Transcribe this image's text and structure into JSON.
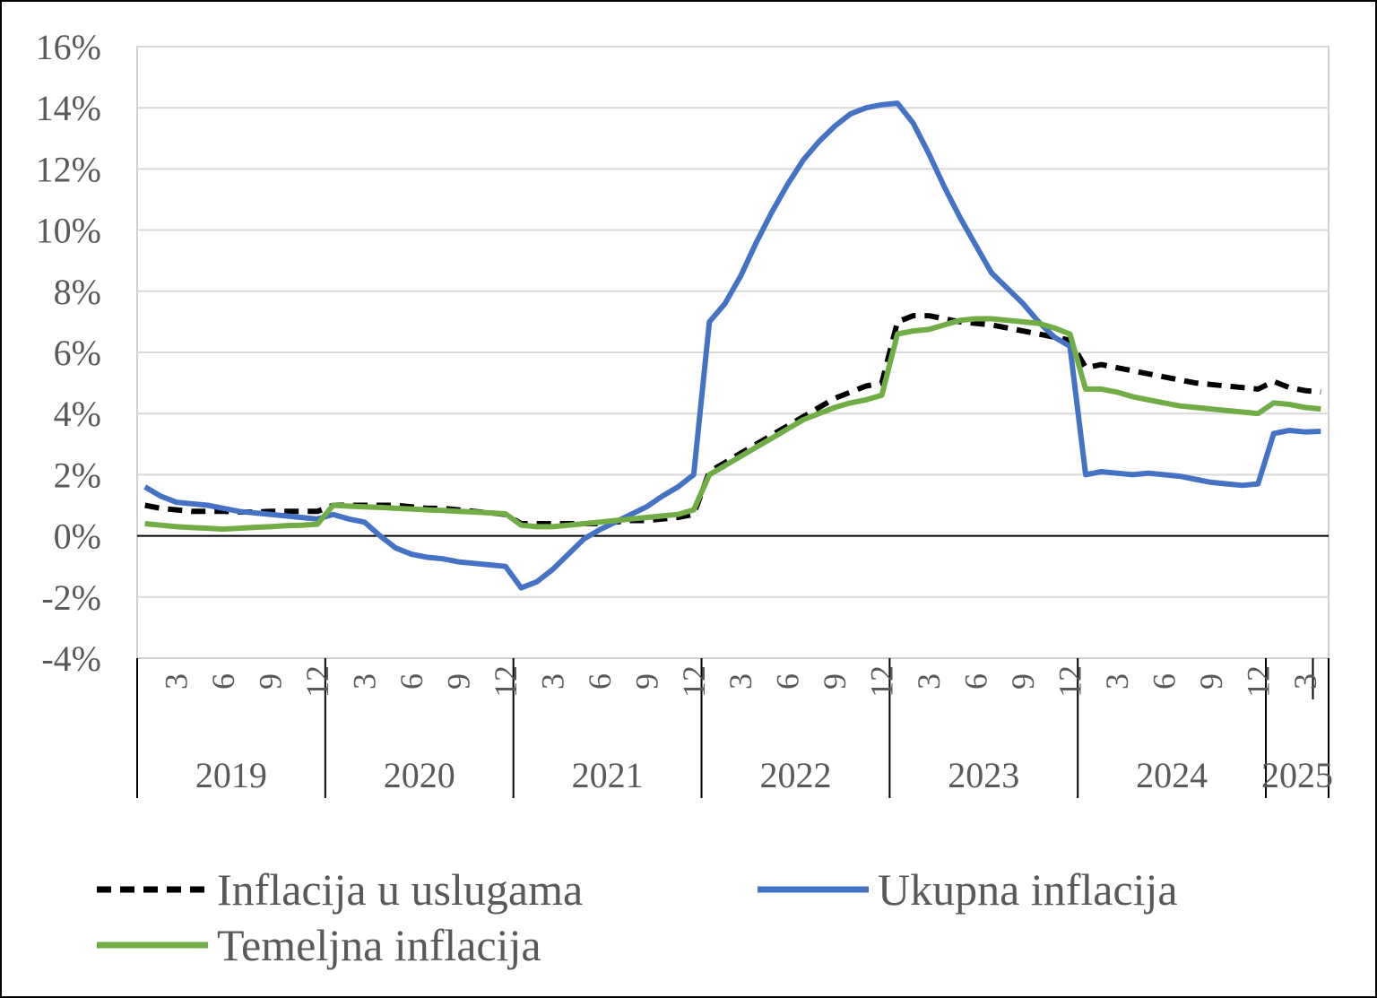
{
  "chart_data": {
    "type": "line",
    "title": "",
    "xlabel": "",
    "ylabel": "",
    "ylim": [
      -4,
      16
    ],
    "y_ticks": [
      -4,
      -2,
      0,
      2,
      4,
      6,
      8,
      10,
      12,
      14,
      16
    ],
    "y_tick_labels": [
      "-4%",
      "-2%",
      "0%",
      "2%",
      "4%",
      "6%",
      "8%",
      "10%",
      "12%",
      "14%",
      "16%"
    ],
    "grid": true,
    "legend_position": "bottom",
    "x_month_index_range": [
      1,
      76
    ],
    "month_tick_labels": [
      {
        "month": 3,
        "label": "3"
      },
      {
        "month": 6,
        "label": "6"
      },
      {
        "month": 9,
        "label": "9"
      },
      {
        "month": 12,
        "label": "12"
      },
      {
        "month": 15,
        "label": "3"
      },
      {
        "month": 18,
        "label": "6"
      },
      {
        "month": 21,
        "label": "9"
      },
      {
        "month": 24,
        "label": "12"
      },
      {
        "month": 27,
        "label": "3"
      },
      {
        "month": 30,
        "label": "6"
      },
      {
        "month": 33,
        "label": "9"
      },
      {
        "month": 36,
        "label": "12"
      },
      {
        "month": 39,
        "label": "3"
      },
      {
        "month": 42,
        "label": "6"
      },
      {
        "month": 45,
        "label": "9"
      },
      {
        "month": 48,
        "label": "12"
      },
      {
        "month": 51,
        "label": "3"
      },
      {
        "month": 54,
        "label": "6"
      },
      {
        "month": 57,
        "label": "9"
      },
      {
        "month": 60,
        "label": "12"
      },
      {
        "month": 63,
        "label": "3"
      },
      {
        "month": 66,
        "label": "6"
      },
      {
        "month": 69,
        "label": "9"
      },
      {
        "month": 72,
        "label": "12"
      },
      {
        "month": 75,
        "label": "3"
      }
    ],
    "years": [
      {
        "label": "2019",
        "start": 1,
        "end": 12
      },
      {
        "label": "2020",
        "start": 13,
        "end": 24
      },
      {
        "label": "2021",
        "start": 25,
        "end": 36
      },
      {
        "label": "2022",
        "start": 37,
        "end": 48
      },
      {
        "label": "2023",
        "start": 49,
        "end": 60
      },
      {
        "label": "2024",
        "start": 61,
        "end": 72
      },
      {
        "label": "2025",
        "start": 73,
        "end": 76
      }
    ],
    "series": [
      {
        "name": "Inflacija u uslugama",
        "color": "#000000",
        "dash": true,
        "values": [
          1.0,
          0.9,
          0.85,
          0.8,
          0.8,
          0.8,
          0.78,
          0.78,
          0.8,
          0.8,
          0.8,
          0.8,
          1.0,
          1.0,
          1.0,
          1.0,
          1.0,
          0.95,
          0.9,
          0.9,
          0.85,
          0.8,
          0.75,
          0.7,
          0.4,
          0.4,
          0.4,
          0.4,
          0.4,
          0.4,
          0.45,
          0.5,
          0.5,
          0.55,
          0.6,
          0.7,
          2.1,
          2.4,
          2.7,
          3.0,
          3.3,
          3.6,
          3.9,
          4.2,
          4.5,
          4.7,
          4.9,
          5.0,
          7.0,
          7.2,
          7.2,
          7.1,
          7.0,
          6.95,
          6.9,
          6.8,
          6.7,
          6.6,
          6.5,
          6.4,
          5.5,
          5.6,
          5.5,
          5.4,
          5.3,
          5.2,
          5.1,
          5.0,
          4.95,
          4.9,
          4.85,
          4.8,
          5.05,
          4.85,
          4.75,
          4.7
        ]
      },
      {
        "name": "Ukupna inflacija",
        "color": "#4472c4",
        "dash": false,
        "values": [
          1.6,
          1.3,
          1.1,
          1.05,
          1.0,
          0.9,
          0.8,
          0.75,
          0.7,
          0.65,
          0.6,
          0.55,
          0.7,
          0.55,
          0.45,
          0.0,
          -0.4,
          -0.6,
          -0.7,
          -0.75,
          -0.85,
          -0.9,
          -0.95,
          -1.0,
          -1.7,
          -1.5,
          -1.1,
          -0.6,
          -0.1,
          0.2,
          0.45,
          0.7,
          0.95,
          1.3,
          1.6,
          2.0,
          7.0,
          7.6,
          8.5,
          9.6,
          10.6,
          11.5,
          12.3,
          12.9,
          13.4,
          13.8,
          14.0,
          14.1,
          14.15,
          13.5,
          12.5,
          11.4,
          10.4,
          9.5,
          8.6,
          8.1,
          7.6,
          7.0,
          6.5,
          6.2,
          2.0,
          2.1,
          2.05,
          2.0,
          2.05,
          2.0,
          1.95,
          1.85,
          1.75,
          1.7,
          1.65,
          1.7,
          3.35,
          3.45,
          3.4,
          3.42
        ]
      },
      {
        "name": "Temeljna inflacija",
        "color": "#70ad47",
        "dash": false,
        "values": [
          0.4,
          0.35,
          0.3,
          0.27,
          0.25,
          0.22,
          0.25,
          0.28,
          0.3,
          0.33,
          0.35,
          0.38,
          1.0,
          0.97,
          0.95,
          0.93,
          0.9,
          0.88,
          0.85,
          0.83,
          0.8,
          0.78,
          0.75,
          0.72,
          0.35,
          0.3,
          0.3,
          0.35,
          0.4,
          0.45,
          0.5,
          0.55,
          0.6,
          0.65,
          0.7,
          0.85,
          2.0,
          2.3,
          2.6,
          2.9,
          3.2,
          3.5,
          3.8,
          4.0,
          4.2,
          4.35,
          4.45,
          4.6,
          6.6,
          6.7,
          6.75,
          6.9,
          7.05,
          7.1,
          7.1,
          7.05,
          7.0,
          6.95,
          6.8,
          6.6,
          4.8,
          4.8,
          4.7,
          4.55,
          4.45,
          4.35,
          4.25,
          4.2,
          4.15,
          4.1,
          4.05,
          4.0,
          4.35,
          4.3,
          4.2,
          4.15
        ]
      }
    ]
  }
}
